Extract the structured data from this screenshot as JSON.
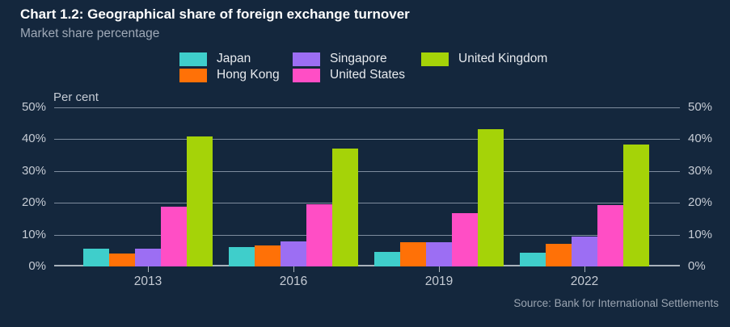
{
  "chart_data": {
    "type": "bar",
    "title": "Chart 1.2: Geographical share of foreign exchange turnover",
    "subtitle": "Market share percentage",
    "categories": [
      "2013",
      "2016",
      "2019",
      "2022"
    ],
    "series": [
      {
        "name": "Japan",
        "color": "#3FCECB",
        "values": [
          5.6,
          6.1,
          4.5,
          4.4
        ]
      },
      {
        "name": "Hong Kong",
        "color": "#FF7107",
        "values": [
          4.1,
          6.7,
          7.6,
          7.1
        ]
      },
      {
        "name": "Singapore",
        "color": "#9C6EF3",
        "values": [
          5.7,
          7.9,
          7.5,
          9.4
        ]
      },
      {
        "name": "United States",
        "color": "#FF4EC5",
        "values": [
          18.9,
          19.5,
          16.8,
          19.4
        ]
      },
      {
        "name": "United Kingdom",
        "color": "#A5D308",
        "values": [
          40.9,
          37.0,
          43.2,
          38.3
        ]
      }
    ],
    "ylabel": "Per cent",
    "ylim": [
      0,
      50
    ],
    "yticks": [
      {
        "value": 0,
        "label": "0%"
      },
      {
        "value": 10,
        "label": "10%"
      },
      {
        "value": 20,
        "label": "20%"
      },
      {
        "value": 30,
        "label": "30%"
      },
      {
        "value": 40,
        "label": "40%"
      },
      {
        "value": 50,
        "label": "50%"
      }
    ],
    "grid": true,
    "legend_position": "top-center",
    "legend_columns": [
      [
        "Japan",
        "Hong Kong"
      ],
      [
        "Singapore",
        "United States"
      ],
      [
        "United Kingdom"
      ]
    ]
  },
  "source": "Source: Bank for International Settlements",
  "colors": {
    "background": "#14273D",
    "grid": "#7E8C9E",
    "axis": "#A9B2BC",
    "title_text": "#FFFFFF",
    "subtitle_text": "#9FA9B7",
    "tick_text": "#C5CBD4",
    "legend_text": "#E7EAEE",
    "source_text": "#9AA4B1"
  }
}
